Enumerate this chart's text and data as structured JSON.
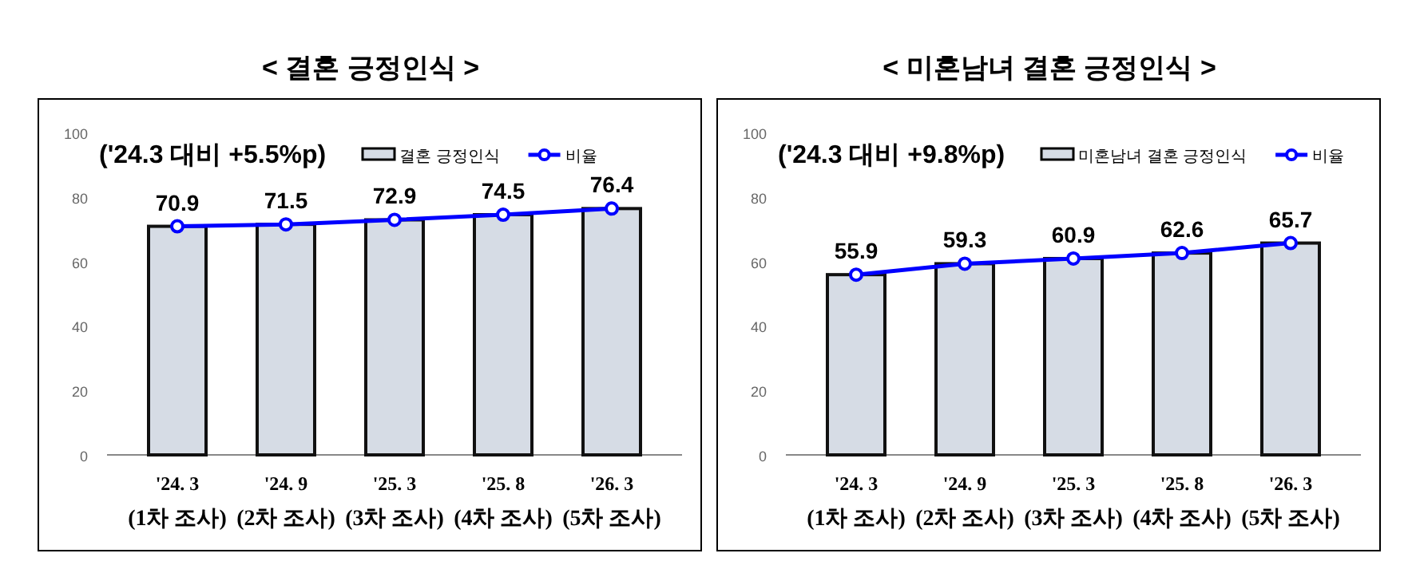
{
  "chart_data": [
    {
      "type": "bar",
      "title": "< 결혼 긍정인식 >",
      "annotations": [
        "('24.3 대비 +5.5%p)"
      ],
      "categories": [
        "'24. 3\n(1차 조사)",
        "'24. 9\n(2차 조사)",
        "'25. 3\n(3차 조사)",
        "'25. 8\n(4차 조사)",
        "'26. 3\n(5차 조사)"
      ],
      "series": [
        {
          "name": "결혼 긍정인식",
          "color": "#d6dce5",
          "values": [
            70.9,
            71.5,
            72.9,
            74.5,
            76.4
          ]
        },
        {
          "name": "비율",
          "type": "line",
          "color": "#0000ff",
          "marker": "circle",
          "values": [
            70.9,
            71.5,
            72.9,
            74.5,
            76.4
          ],
          "value_labels": [
            "70.9",
            "71.5",
            "72.9",
            "74.5",
            "76.4"
          ]
        }
      ],
      "ylim": [
        0,
        100
      ],
      "yticks": [
        0,
        20,
        40,
        60,
        80,
        100
      ],
      "legend": "top",
      "grid": false
    },
    {
      "type": "bar",
      "title": "< 미혼남녀 결혼 긍정인식 >",
      "annotations": [
        "('24.3 대비 +9.8%p)"
      ],
      "categories": [
        "'24. 3\n(1차 조사)",
        "'24. 9\n(2차 조사)",
        "'25. 3\n(3차 조사)",
        "'25. 8\n(4차 조사)",
        "'26. 3\n(5차 조사)"
      ],
      "series": [
        {
          "name": "미혼남녀 결혼 긍정인식",
          "color": "#d6dce5",
          "values": [
            55.9,
            59.3,
            60.9,
            62.6,
            65.7
          ]
        },
        {
          "name": "비율",
          "type": "line",
          "color": "#0000ff",
          "marker": "circle",
          "values": [
            55.9,
            59.3,
            60.9,
            62.6,
            65.7
          ],
          "value_labels": [
            "55.9",
            "59.3",
            "60.9",
            "62.6",
            "65.7"
          ]
        }
      ],
      "ylim": [
        0,
        100
      ],
      "yticks": [
        0,
        20,
        40,
        60,
        80,
        100
      ],
      "legend": "top",
      "grid": false
    }
  ]
}
